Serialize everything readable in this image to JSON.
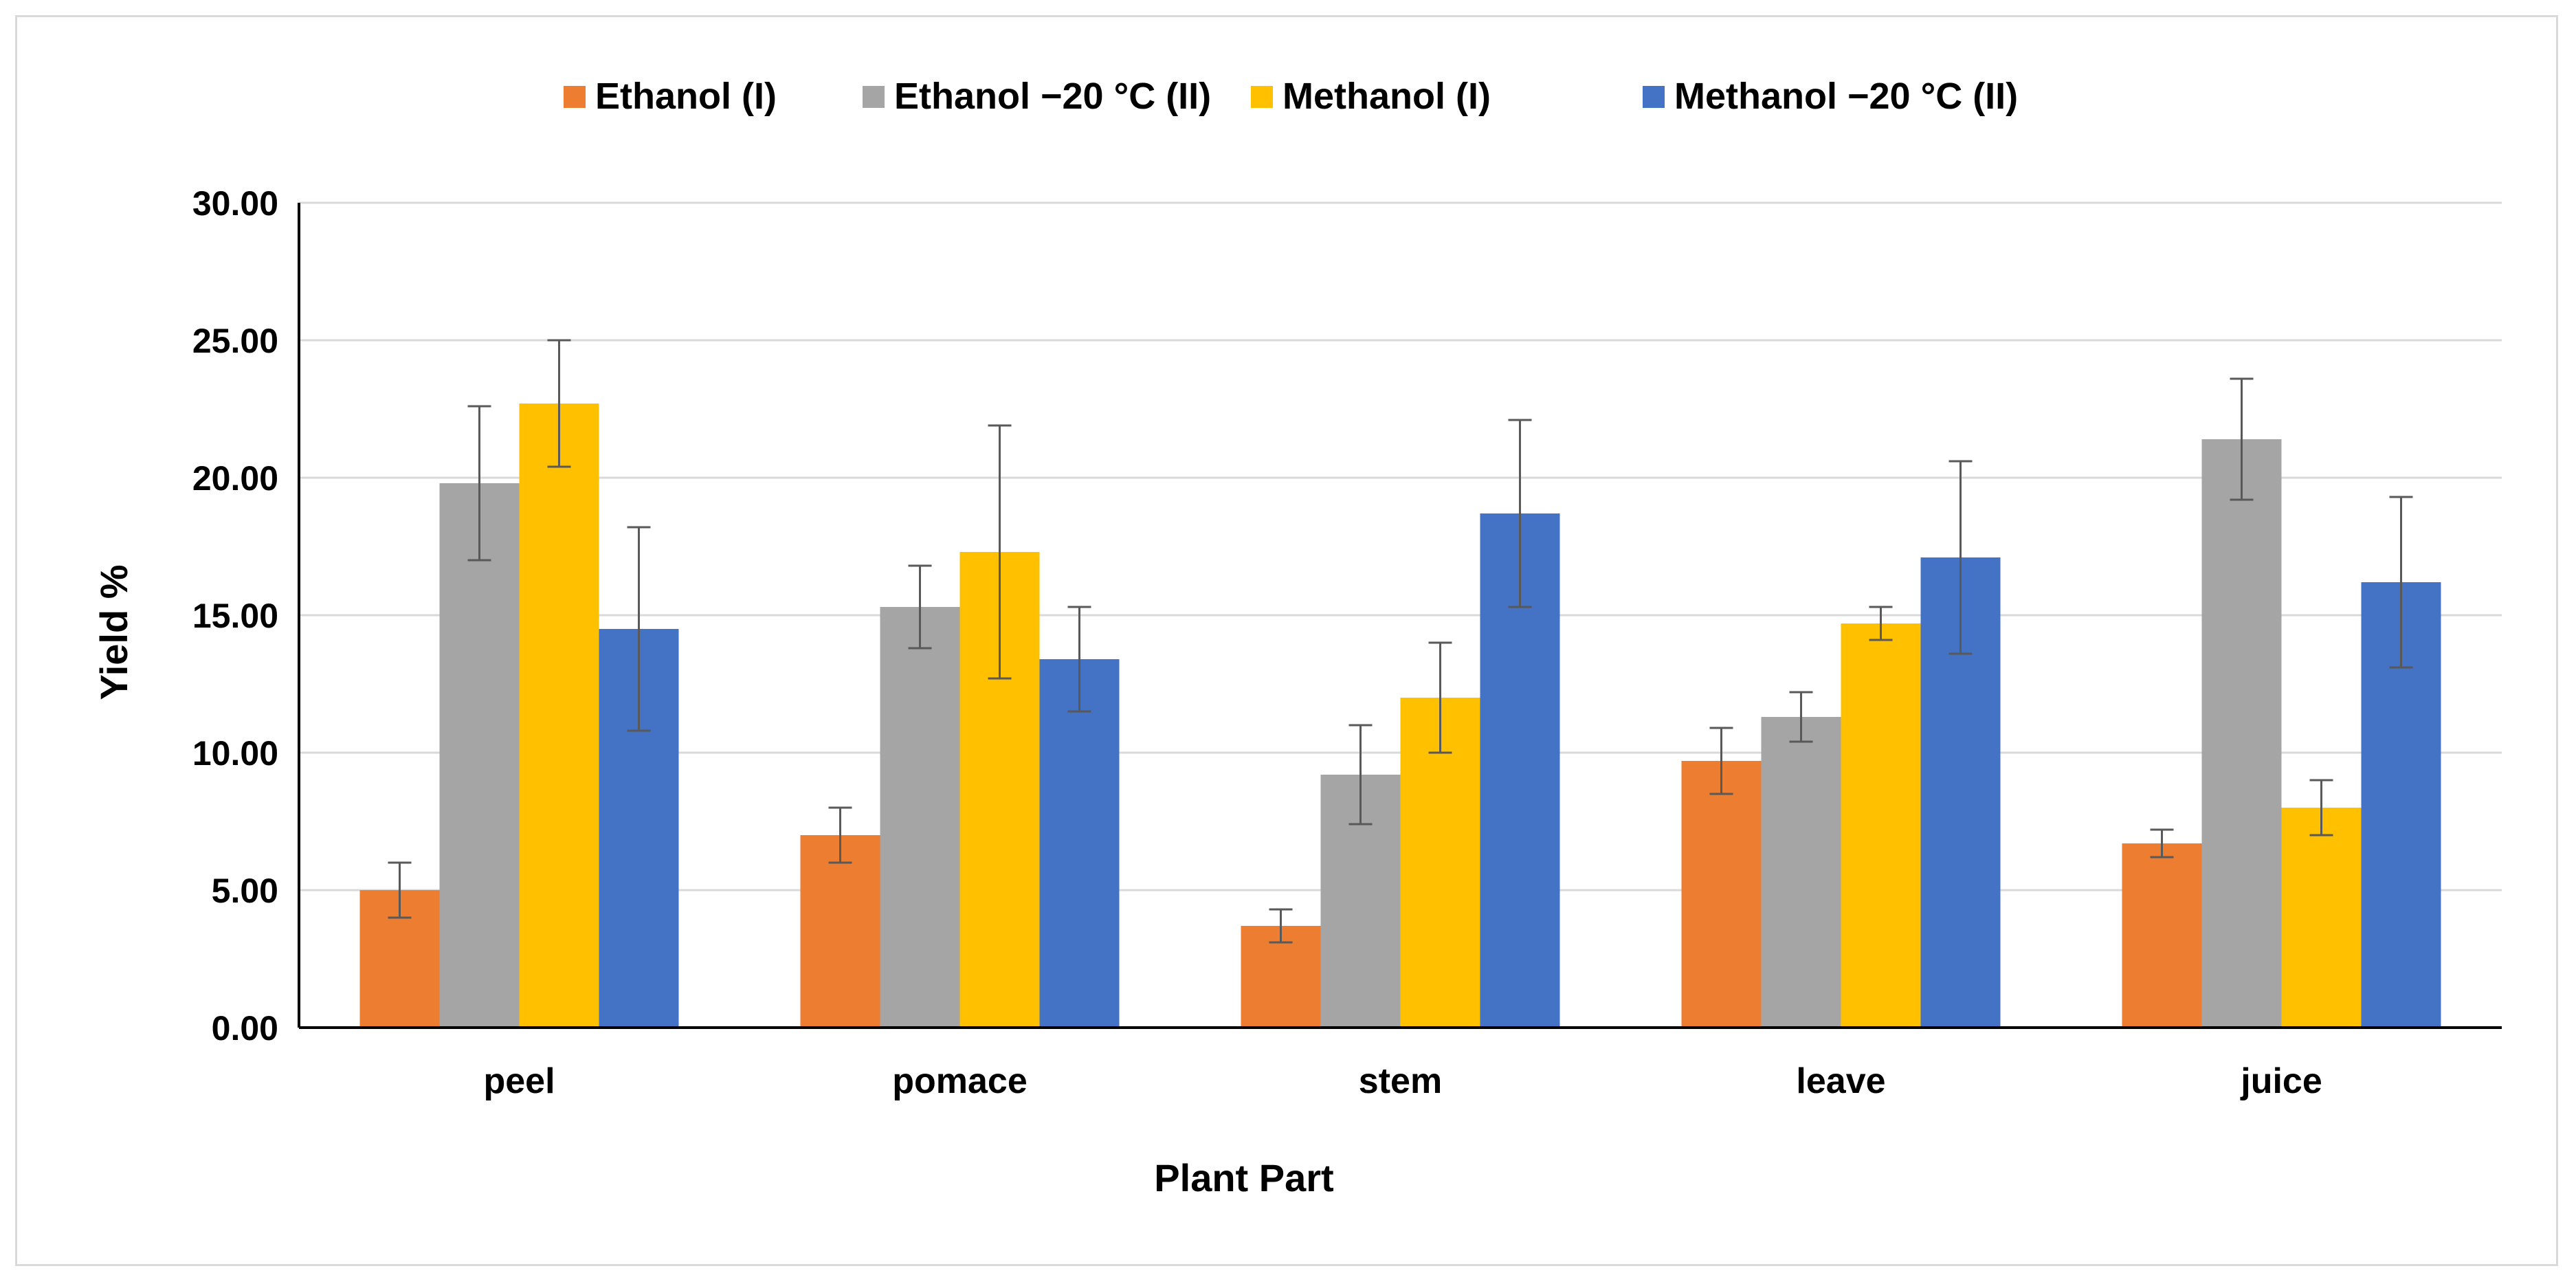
{
  "chart_data": {
    "type": "bar",
    "title": "",
    "xlabel": "Plant Part",
    "ylabel": "Yield %",
    "ylim": [
      0,
      30
    ],
    "yticks": [
      "0.00",
      "5.00",
      "10.00",
      "15.00",
      "20.00",
      "25.00",
      "30.00"
    ],
    "categories": [
      "peel",
      "pomace",
      "stem",
      "leave",
      "juice"
    ],
    "legend_position": "top",
    "grid": true,
    "series": [
      {
        "name": "Ethanol (I)",
        "color": "#ED7D31",
        "values": [
          5.0,
          7.0,
          3.7,
          9.7,
          6.7
        ],
        "errors": [
          1.0,
          1.0,
          0.6,
          1.2,
          0.5
        ]
      },
      {
        "name": "Ethanol −20 °C (II)",
        "color": "#A5A5A5",
        "values": [
          19.8,
          15.3,
          9.2,
          11.3,
          21.4
        ],
        "errors": [
          2.8,
          1.5,
          1.8,
          0.9,
          2.2
        ]
      },
      {
        "name": "Methanol (I)",
        "color": "#FFC000",
        "values": [
          22.7,
          17.3,
          12.0,
          14.7,
          8.0
        ],
        "errors": [
          2.3,
          4.6,
          2.0,
          0.6,
          1.0
        ]
      },
      {
        "name": "Methanol −20 °C (II)",
        "color": "#4472C4",
        "values": [
          14.5,
          13.4,
          18.7,
          17.1,
          16.2
        ],
        "errors": [
          3.7,
          1.9,
          3.4,
          3.5,
          3.1
        ]
      }
    ]
  }
}
